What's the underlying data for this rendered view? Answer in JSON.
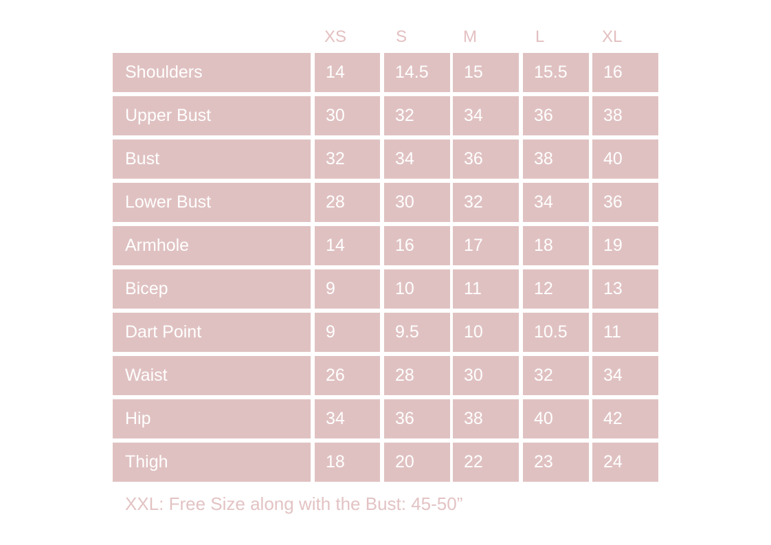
{
  "sizes": [
    "XS",
    "S",
    "M",
    "L",
    "XL"
  ],
  "rows": [
    {
      "label": "Shoulders",
      "values": [
        "14",
        "14.5",
        "15",
        "15.5",
        "16"
      ]
    },
    {
      "label": "Upper Bust",
      "values": [
        "30",
        "32",
        "34",
        "36",
        "38"
      ]
    },
    {
      "label": "Bust",
      "values": [
        "32",
        "34",
        "36",
        "38",
        "40"
      ]
    },
    {
      "label": "Lower Bust",
      "values": [
        "28",
        "30",
        "32",
        "34",
        "36"
      ]
    },
    {
      "label": "Armhole",
      "values": [
        "14",
        "16",
        "17",
        "18",
        "19"
      ]
    },
    {
      "label": "Bicep",
      "values": [
        "9",
        "10",
        "11",
        "12",
        "13"
      ]
    },
    {
      "label": "Dart Point",
      "values": [
        "9",
        "9.5",
        "10",
        "10.5",
        "11"
      ]
    },
    {
      "label": "Waist",
      "values": [
        "26",
        "28",
        "30",
        "32",
        "34"
      ]
    },
    {
      "label": "Hip",
      "values": [
        "34",
        "36",
        "38",
        "40",
        "42"
      ]
    },
    {
      "label": "Thigh",
      "values": [
        "18",
        "20",
        "22",
        "23",
        "24"
      ]
    }
  ],
  "note": "XXL: Free Size along with the Bust: 45-50”",
  "colors": {
    "cell": "#e0c1c1",
    "text": "#ffffff",
    "header": "#e3bfc0"
  }
}
